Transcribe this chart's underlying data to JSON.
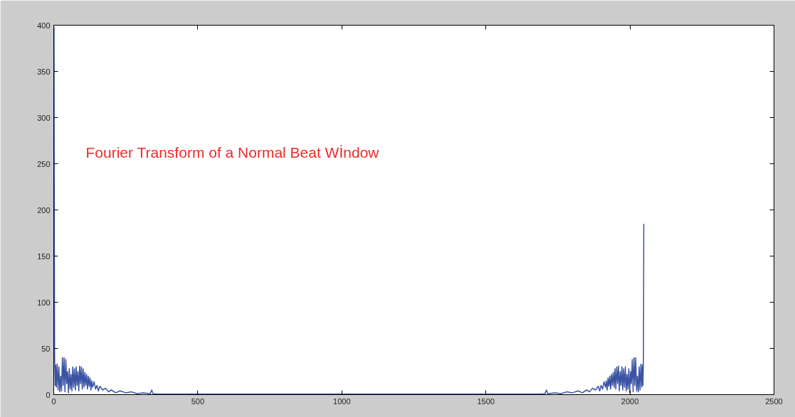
{
  "chart_data": {
    "type": "line",
    "xlim": [
      0,
      2500
    ],
    "ylim": [
      0,
      400
    ],
    "xticks": [
      0,
      500,
      1000,
      1500,
      2000,
      2500
    ],
    "yticks": [
      0,
      50,
      100,
      150,
      200,
      250,
      300,
      350,
      400
    ],
    "grid": false,
    "annotations": [
      "Fourier Transform of a Normal Beat Wİndow"
    ],
    "series": [
      {
        "color": "#3a53a4",
        "x": [
          1,
          2,
          3,
          5,
          7,
          9,
          12,
          15,
          18,
          21,
          24,
          27,
          30,
          33,
          36,
          39,
          42,
          45,
          48,
          51,
          54,
          57,
          60,
          63,
          66,
          69,
          72,
          75,
          78,
          81,
          84,
          87,
          90,
          93,
          96,
          99,
          102,
          105,
          108,
          111,
          114,
          117,
          120,
          123,
          126,
          129,
          132,
          135,
          140,
          145,
          150,
          155,
          160,
          170,
          180,
          190,
          200,
          215,
          230,
          250,
          270,
          290,
          310,
          335,
          340,
          345,
          360,
          400,
          1025,
          1650,
          1690,
          1705,
          1710,
          1715,
          1740,
          1760,
          1780,
          1800,
          1820,
          1835,
          1850,
          1860,
          1870,
          1880,
          1890,
          1895,
          1900,
          1905,
          1910,
          1915,
          1918,
          1921,
          1924,
          1927,
          1930,
          1933,
          1936,
          1939,
          1942,
          1945,
          1948,
          1951,
          1954,
          1957,
          1960,
          1963,
          1966,
          1969,
          1972,
          1975,
          1978,
          1981,
          1984,
          1987,
          1990,
          1993,
          1996,
          1999,
          2002,
          2005,
          2008,
          2011,
          2014,
          2017,
          2020,
          2023,
          2026,
          2029,
          2032,
          2035,
          2038,
          2041,
          2043,
          2045,
          2047,
          2048
        ],
        "values": [
          398,
          185,
          42,
          10,
          32,
          8,
          33,
          5,
          30,
          3,
          20,
          4,
          40,
          10,
          40,
          3,
          38,
          12,
          25,
          2,
          28,
          6,
          22,
          4,
          30,
          8,
          28,
          5,
          30,
          10,
          25,
          4,
          31,
          12,
          30,
          6,
          28,
          8,
          24,
          10,
          22,
          6,
          20,
          9,
          18,
          5,
          15,
          8,
          14,
          6,
          10,
          4,
          9,
          5,
          7,
          3,
          5,
          2,
          4,
          2,
          3,
          1,
          2,
          1,
          5,
          1,
          0.5,
          0.5,
          0.5,
          0.5,
          0.5,
          1,
          5,
          1,
          2,
          1,
          3,
          2,
          4,
          2,
          5,
          3,
          7,
          5,
          9,
          4,
          10,
          6,
          14,
          8,
          15,
          5,
          18,
          9,
          20,
          6,
          22,
          10,
          24,
          8,
          28,
          6,
          30,
          12,
          31,
          4,
          25,
          10,
          30,
          5,
          28,
          8,
          30,
          4,
          22,
          6,
          28,
          2,
          25,
          12,
          38,
          3,
          40,
          10,
          40,
          4,
          20,
          3,
          30,
          5,
          33,
          8,
          32,
          10,
          42,
          185
        ]
      }
    ]
  }
}
